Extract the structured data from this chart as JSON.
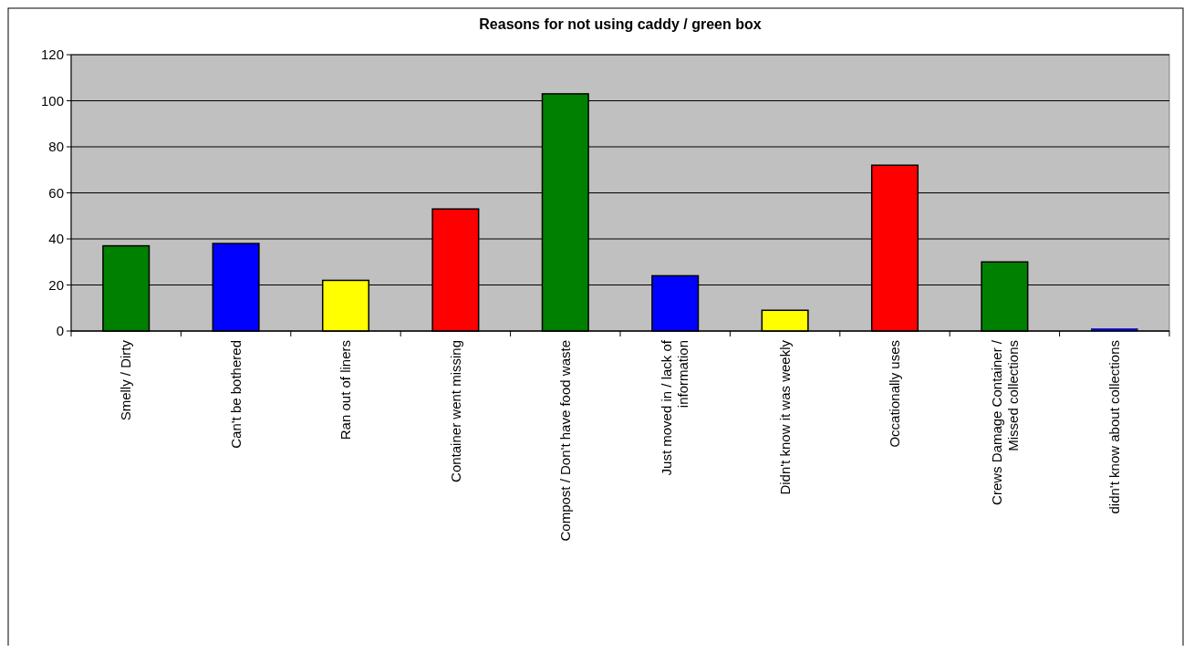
{
  "chart_data": {
    "type": "bar",
    "title": "Reasons for not using caddy / green box",
    "categories": [
      "Smelly / Dirty",
      "Can't be bothered",
      "Ran out of liners",
      "Container went missing",
      "Compost / Don't have food waste",
      "Just moved in / lack of\ninformation",
      "Didn't know it was weekly",
      "Occationally uses",
      "Crews Damage Container /\nMissed collections",
      "didn't know about collections"
    ],
    "values": [
      37,
      38,
      22,
      53,
      103,
      24,
      9,
      72,
      30,
      1
    ],
    "colors": [
      "#008000",
      "#0000ff",
      "#ffff00",
      "#ff0000",
      "#008000",
      "#0000ff",
      "#ffff00",
      "#ff0000",
      "#008000",
      "#0000ff"
    ],
    "ylim": [
      0,
      120
    ],
    "yticks": [
      0,
      20,
      40,
      60,
      80,
      100,
      120
    ],
    "grid": "y"
  }
}
